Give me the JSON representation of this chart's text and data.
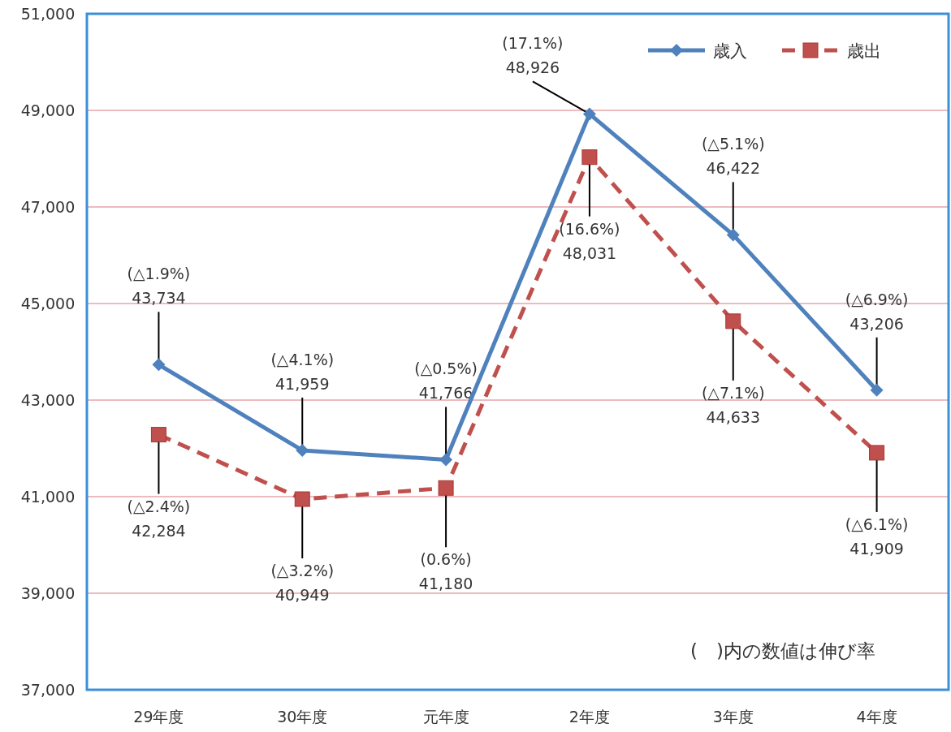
{
  "chart_data": {
    "type": "line",
    "categories": [
      "29年度",
      "30年度",
      "元年度",
      "2年度",
      "3年度",
      "4年度"
    ],
    "series": [
      {
        "name": "歳入",
        "color": "#4f81bd",
        "marker": "diamond",
        "line_style": "solid",
        "values": [
          43734,
          41959,
          41766,
          48926,
          46422,
          43206
        ],
        "value_labels": [
          "(△1.9%)\n43,734",
          "(△4.1%)\n41,959",
          "(△0.5%)\n41,766",
          "(17.1%)\n48,926",
          "(△5.1%)\n46,422",
          "(△6.9%)\n43,206"
        ]
      },
      {
        "name": "歳出",
        "color": "#c0504d",
        "marker": "square",
        "line_style": "dashed",
        "values": [
          42284,
          40949,
          41180,
          48031,
          44633,
          41909
        ],
        "value_labels": [
          "(△2.4%)\n42,284",
          "(△3.2%)\n40,949",
          "(0.6%)\n41,180",
          "(16.6%)\n48,031",
          "(△7.1%)\n44,633",
          "(△6.1%)\n41,909"
        ]
      }
    ],
    "ylim": [
      37000,
      51000
    ],
    "yticks": [
      {
        "value": 37000,
        "label": "37,000"
      },
      {
        "value": 39000,
        "label": "39,000"
      },
      {
        "value": 41000,
        "label": "41,000"
      },
      {
        "value": 43000,
        "label": "43,000"
      },
      {
        "value": 45000,
        "label": "45,000"
      },
      {
        "value": 47000,
        "label": "47,000"
      },
      {
        "value": 49000,
        "label": "49,000"
      },
      {
        "value": 51000,
        "label": "51,000"
      }
    ],
    "grid": "y",
    "legend": "top right",
    "annotations": [
      "(　)内の数値は伸び率"
    ]
  }
}
